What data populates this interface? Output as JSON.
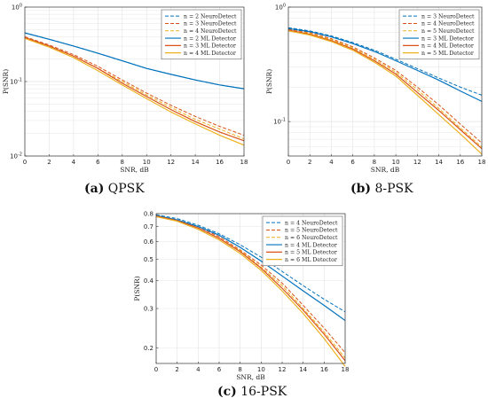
{
  "colors": {
    "blue": "#0072BD",
    "orange": "#D95319",
    "yellow": "#EDB120",
    "grid": "#e3e3e3",
    "axis": "#333333"
  },
  "chart_data": [
    {
      "type": "line",
      "caption": {
        "label": "(a)",
        "text": "QPSK"
      },
      "xlabel": "SNR, dB",
      "ylabel": "P(SNR)",
      "xlim": [
        0,
        18
      ],
      "ylim": [
        0.01,
        1
      ],
      "yscale": "log",
      "grid": true,
      "legend_position": "top-right",
      "xticks": [
        "0",
        "2",
        "4",
        "6",
        "8",
        "10",
        "12",
        "14",
        "16",
        "18"
      ],
      "yticks": [
        {
          "v": 1,
          "base": "10",
          "exp": "0"
        },
        {
          "v": 0.1,
          "base": "10",
          "exp": "-1"
        },
        {
          "v": 0.01,
          "base": "10",
          "exp": "-2"
        }
      ],
      "x": [
        0,
        2,
        4,
        6,
        8,
        10,
        12,
        14,
        16,
        18
      ],
      "series": [
        {
          "name": "n = 2 NeuroDetect",
          "color": "blue",
          "dash": true,
          "values": [
            0.45,
            0.37,
            0.3,
            0.24,
            0.19,
            0.15,
            0.125,
            0.105,
            0.09,
            0.08
          ]
        },
        {
          "name": "n = 3 NeuroDetect",
          "color": "orange",
          "dash": true,
          "values": [
            0.4,
            0.31,
            0.23,
            0.16,
            0.105,
            0.07,
            0.048,
            0.034,
            0.025,
            0.019
          ]
        },
        {
          "name": "n = 4 NeuroDetect",
          "color": "yellow",
          "dash": true,
          "values": [
            0.39,
            0.3,
            0.22,
            0.15,
            0.1,
            0.066,
            0.045,
            0.031,
            0.023,
            0.017
          ]
        },
        {
          "name": "n = 2 ML Detector",
          "color": "blue",
          "dash": false,
          "values": [
            0.45,
            0.37,
            0.3,
            0.24,
            0.19,
            0.15,
            0.125,
            0.105,
            0.09,
            0.08
          ]
        },
        {
          "name": "n = 3 ML Detector",
          "color": "orange",
          "dash": false,
          "values": [
            0.39,
            0.3,
            0.22,
            0.15,
            0.095,
            0.063,
            0.042,
            0.029,
            0.021,
            0.016
          ]
        },
        {
          "name": "n = 4 ML Detector",
          "color": "yellow",
          "dash": false,
          "values": [
            0.38,
            0.29,
            0.21,
            0.14,
            0.09,
            0.059,
            0.039,
            0.027,
            0.019,
            0.014
          ]
        }
      ]
    },
    {
      "type": "line",
      "caption": {
        "label": "(b)",
        "text": "8-PSK"
      },
      "xlabel": "SNR, dB",
      "ylabel": "P(SNR)",
      "xlim": [
        0,
        18
      ],
      "ylim": [
        0.05,
        1
      ],
      "yscale": "log",
      "grid": true,
      "legend_position": "top-right",
      "xticks": [
        "0",
        "2",
        "4",
        "6",
        "8",
        "10",
        "12",
        "14",
        "16",
        "18"
      ],
      "yticks": [
        {
          "v": 1,
          "base": "10",
          "exp": "0"
        },
        {
          "v": 0.1,
          "base": "10",
          "exp": "-1"
        }
      ],
      "x": [
        0,
        2,
        4,
        6,
        8,
        10,
        12,
        14,
        16,
        18
      ],
      "series": [
        {
          "name": "n = 3 NeuroDetect",
          "color": "blue",
          "dash": true,
          "values": [
            0.66,
            0.62,
            0.56,
            0.49,
            0.42,
            0.35,
            0.29,
            0.24,
            0.2,
            0.17
          ]
        },
        {
          "name": "n = 4 NeuroDetect",
          "color": "orange",
          "dash": true,
          "values": [
            0.64,
            0.6,
            0.53,
            0.45,
            0.36,
            0.28,
            0.2,
            0.14,
            0.095,
            0.065
          ]
        },
        {
          "name": "n = 5 NeuroDetect",
          "color": "yellow",
          "dash": true,
          "values": [
            0.63,
            0.59,
            0.52,
            0.44,
            0.35,
            0.27,
            0.19,
            0.13,
            0.088,
            0.06
          ]
        },
        {
          "name": "n = 3 ML Detector",
          "color": "blue",
          "dash": false,
          "values": [
            0.65,
            0.61,
            0.55,
            0.48,
            0.41,
            0.34,
            0.28,
            0.23,
            0.185,
            0.15
          ]
        },
        {
          "name": "n = 4 ML Detector",
          "color": "orange",
          "dash": false,
          "values": [
            0.63,
            0.58,
            0.51,
            0.43,
            0.34,
            0.26,
            0.18,
            0.125,
            0.085,
            0.058
          ]
        },
        {
          "name": "n = 5 ML Detector",
          "color": "yellow",
          "dash": false,
          "values": [
            0.62,
            0.57,
            0.5,
            0.42,
            0.33,
            0.25,
            0.17,
            0.115,
            0.078,
            0.052
          ]
        }
      ]
    },
    {
      "type": "line",
      "caption": {
        "label": "(c)",
        "text": "16-PSK"
      },
      "xlabel": "SNR, dB",
      "ylabel": "P(SNR)",
      "xlim": [
        0,
        18
      ],
      "ylim": [
        0.17,
        0.8
      ],
      "yscale": "log",
      "grid": true,
      "legend_position": "top-right",
      "xticks": [
        "0",
        "2",
        "4",
        "6",
        "8",
        "10",
        "12",
        "14",
        "16",
        "18"
      ],
      "yticks": [
        {
          "v": 0.8,
          "label": "0.8"
        },
        {
          "v": 0.7,
          "label": "0.7"
        },
        {
          "v": 0.6,
          "label": "0.6"
        },
        {
          "v": 0.5,
          "label": "0.5"
        },
        {
          "v": 0.4,
          "label": "0.4"
        },
        {
          "v": 0.3,
          "label": "0.3"
        },
        {
          "v": 0.2,
          "label": "0.2"
        }
      ],
      "x": [
        0,
        2,
        4,
        6,
        8,
        10,
        12,
        14,
        16,
        18
      ],
      "series": [
        {
          "name": "n = 4 NeuroDetect",
          "color": "blue",
          "dash": true,
          "values": [
            0.79,
            0.76,
            0.71,
            0.65,
            0.58,
            0.51,
            0.44,
            0.38,
            0.33,
            0.29
          ]
        },
        {
          "name": "n = 5 NeuroDetect",
          "color": "orange",
          "dash": true,
          "values": [
            0.785,
            0.75,
            0.7,
            0.63,
            0.55,
            0.47,
            0.39,
            0.31,
            0.245,
            0.19
          ]
        },
        {
          "name": "n = 6 NeuroDetect",
          "color": "yellow",
          "dash": true,
          "values": [
            0.78,
            0.745,
            0.69,
            0.62,
            0.545,
            0.46,
            0.38,
            0.3,
            0.235,
            0.18
          ]
        },
        {
          "name": "n = 4 ML Detector",
          "color": "blue",
          "dash": false,
          "values": [
            0.785,
            0.75,
            0.7,
            0.64,
            0.565,
            0.49,
            0.42,
            0.36,
            0.31,
            0.265
          ]
        },
        {
          "name": "n = 5 ML Detector",
          "color": "orange",
          "dash": false,
          "values": [
            0.78,
            0.745,
            0.69,
            0.62,
            0.54,
            0.455,
            0.37,
            0.295,
            0.23,
            0.175
          ]
        },
        {
          "name": "n = 6 ML Detector",
          "color": "yellow",
          "dash": false,
          "values": [
            0.775,
            0.74,
            0.68,
            0.61,
            0.53,
            0.445,
            0.36,
            0.285,
            0.22,
            0.165
          ]
        }
      ]
    }
  ]
}
